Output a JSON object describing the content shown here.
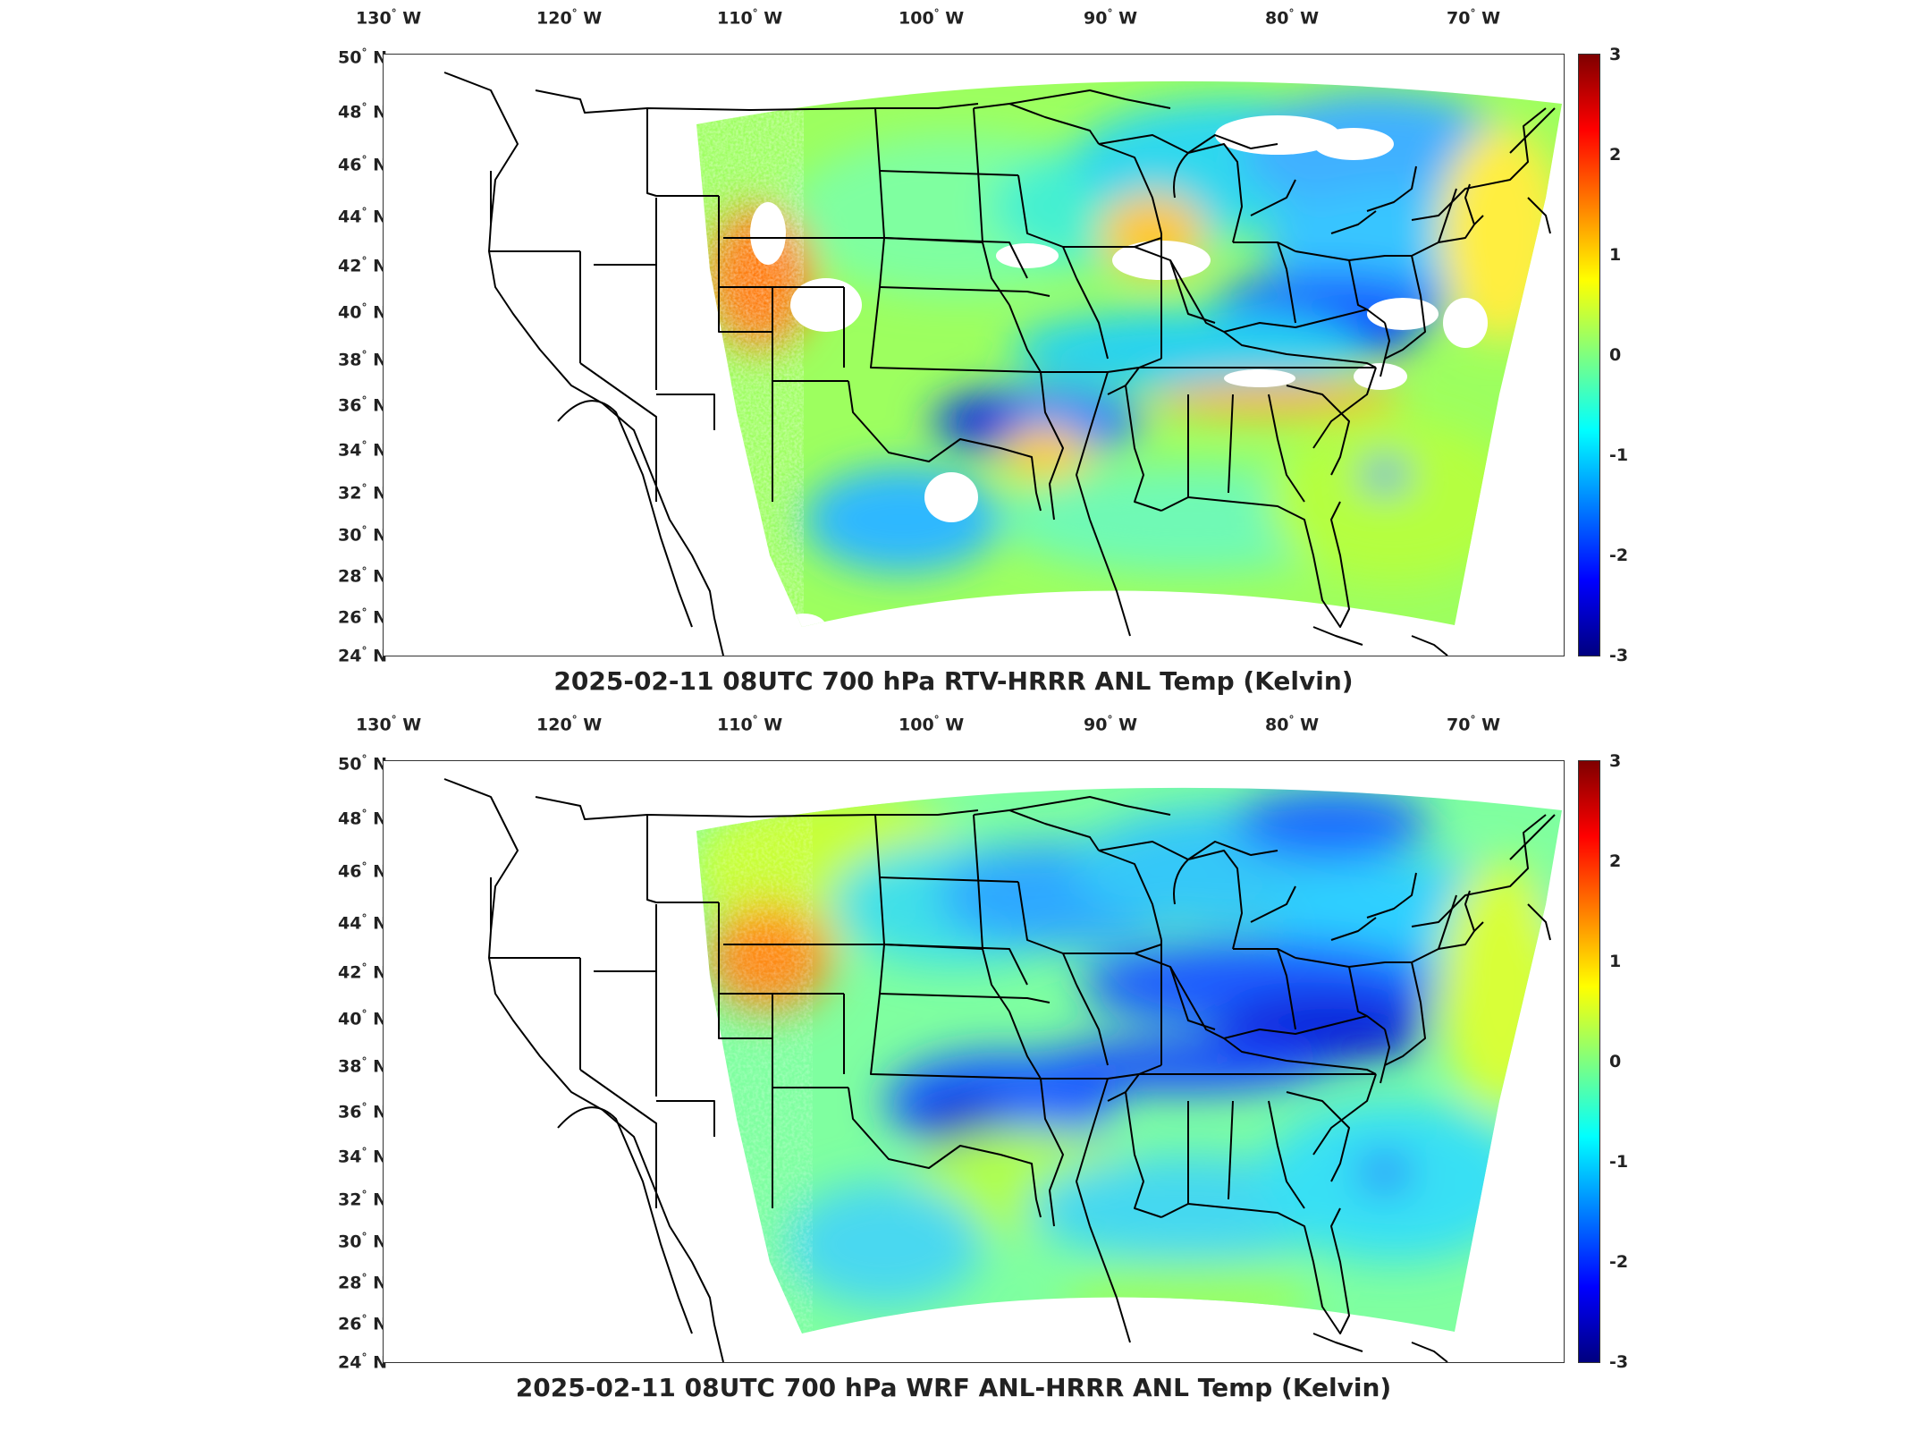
{
  "panels": [
    {
      "title": "2025-02-11 08UTC 700 hPa RTV-HRRR ANL Temp (Kelvin)",
      "lon_labels": [
        "130",
        "120",
        "110",
        "100",
        "90",
        "80",
        "70"
      ],
      "lon_suffix": "W",
      "lat_labels": [
        "50",
        "48",
        "46",
        "44",
        "42",
        "40",
        "38",
        "36",
        "34",
        "32",
        "30",
        "28",
        "26",
        "24"
      ],
      "lat_suffix": "N",
      "colorbar_ticks": [
        "3",
        "2",
        "1",
        "0",
        "-1",
        "-2",
        "-3"
      ]
    },
    {
      "title": "2025-02-11 08UTC 700 hPa WRF ANL-HRRR ANL Temp (Kelvin)",
      "lon_labels": [
        "130",
        "120",
        "110",
        "100",
        "90",
        "80",
        "70"
      ],
      "lon_suffix": "W",
      "lat_labels": [
        "50",
        "48",
        "46",
        "44",
        "42",
        "40",
        "38",
        "36",
        "34",
        "32",
        "30",
        "28",
        "26",
        "24"
      ],
      "lat_suffix": "N",
      "colorbar_ticks": [
        "3",
        "2",
        "1",
        "0",
        "-1",
        "-2",
        "-3"
      ]
    }
  ],
  "colorbar_range": [
    -3,
    3
  ],
  "colormap": [
    "#00007f",
    "#0000ff",
    "#007fff",
    "#00ffff",
    "#7fff7f",
    "#ffff00",
    "#ff7f00",
    "#ff0000",
    "#7f0000"
  ]
}
